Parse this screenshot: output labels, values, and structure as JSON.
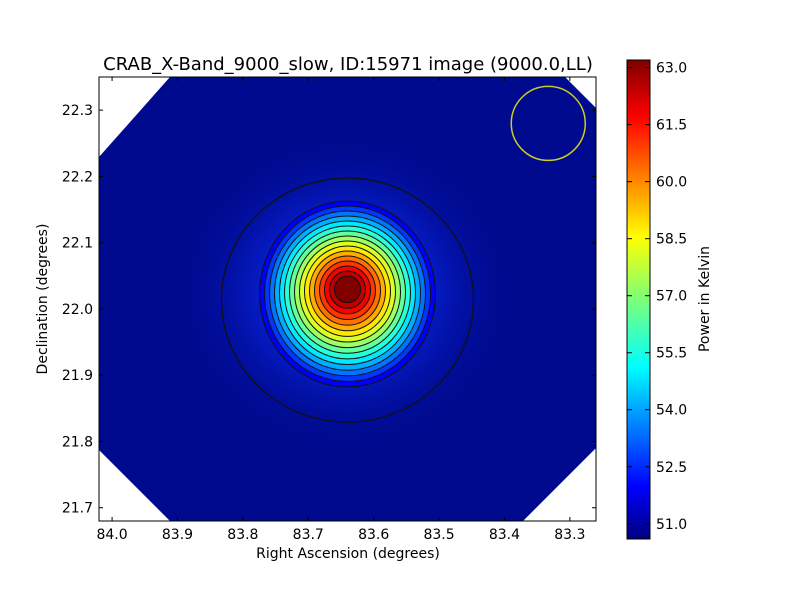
{
  "chart_data": {
    "type": "heatmap",
    "title": "CRAB_X-Band_9000_slow, ID:15971 image (9000.0,LL)",
    "xlabel": "Right Ascension (degrees)",
    "ylabel": "Declination (degrees)",
    "xlim": [
      84.02,
      83.26
    ],
    "ylim": [
      21.68,
      22.35
    ],
    "xticks": [
      "84.0",
      "83.9",
      "83.8",
      "83.7",
      "83.6",
      "83.5",
      "83.4",
      "83.3"
    ],
    "xtick_values": [
      84.0,
      83.9,
      83.8,
      83.7,
      83.6,
      83.5,
      83.4,
      83.3
    ],
    "yticks": [
      "21.7",
      "21.8",
      "21.9",
      "22.0",
      "22.1",
      "22.2",
      "22.3"
    ],
    "ytick_values": [
      21.7,
      21.8,
      21.9,
      22.0,
      22.1,
      22.2,
      22.3
    ],
    "source_peak": {
      "ra": 83.64,
      "dec": 22.03
    },
    "value_range": [
      50.6,
      63.2
    ],
    "colormap": "jet",
    "colorbar": {
      "label": "Power in Kelvin",
      "ticks": [
        "51.0",
        "52.5",
        "54.0",
        "55.5",
        "57.0",
        "58.5",
        "60.0",
        "61.5",
        "63.0"
      ],
      "tick_values": [
        51.0,
        52.5,
        54.0,
        55.5,
        57.0,
        58.5,
        60.0,
        61.5,
        63.0
      ],
      "range": [
        50.6,
        63.2
      ]
    },
    "beam_circle": {
      "ra": 83.333,
      "dec": 22.28,
      "color": "#cccc22"
    },
    "grid": false,
    "legend": "none"
  }
}
